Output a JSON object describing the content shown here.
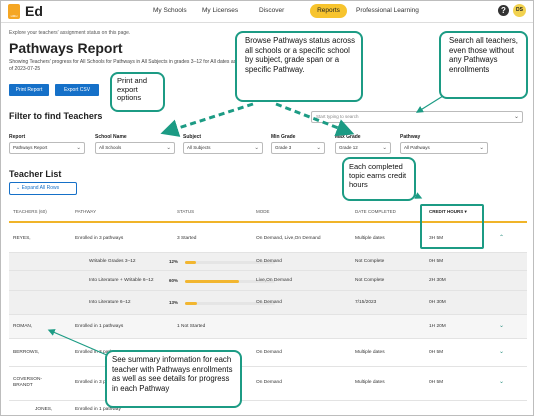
{
  "nav": {
    "logo_badge": "HMH",
    "logo": "Ed",
    "links": [
      "My Schools",
      "My Licenses",
      "Discover",
      "Professional Learning"
    ],
    "active": "Reports",
    "help": "?",
    "avatar": "DS"
  },
  "page": {
    "intro": "Explore your teachers' assignment status on this page.",
    "title": "Pathways Report",
    "subtitle": "Showing Teachers' progress for All Schools for Pathways in All Subjects in grades 3–12 for All dates as of 2023-07-25",
    "print_button": "Print Report",
    "csv_button": "Export CSV"
  },
  "filters": {
    "title": "Filter to find Teachers",
    "search_placeholder": "Start typing to search",
    "fields": [
      {
        "label": "Report",
        "value": "Pathways Report"
      },
      {
        "label": "School Name",
        "value": "All Schools"
      },
      {
        "label": "Subject",
        "value": "All Subjects"
      },
      {
        "label": "Min Grade",
        "value": "Grade 3"
      },
      {
        "label": "Max Grade",
        "value": "Grade 12"
      },
      {
        "label": "Pathway",
        "value": "All Pathways"
      }
    ]
  },
  "teacher_list": {
    "title": "Teacher List",
    "expand_button": "Expand All Rows",
    "columns": [
      "TEACHERS (60)",
      "PATHWAY",
      "STATUS",
      "MODE",
      "DATE COMPLETED",
      "CREDIT HOURS"
    ],
    "rows": [
      {
        "teacher": "REYES,",
        "pathway": "Enrolled in 3 pathways",
        "status": "3 Started",
        "mode": "On Demand, Live,On Demand",
        "date": "Multiple dates",
        "hours": "3H 5M",
        "chev": "^"
      },
      {
        "teacher": "",
        "pathway": "Writable Grades 3–12",
        "pct": "12%",
        "progress": 0.12,
        "mode": "On Demand",
        "date": "Not Complete",
        "hours": "0H 5M"
      },
      {
        "teacher": "",
        "pathway": "Into Literature + Writable 6–12",
        "pct": "60%",
        "progress": 0.6,
        "mode": "Live,On Demand",
        "date": "Not Complete",
        "hours": "2H 30M"
      },
      {
        "teacher": "",
        "pathway": "Into Literature 6–12",
        "pct": "13%",
        "progress": 0.13,
        "mode": "On Demand",
        "date": "7/15/2023",
        "hours": "0H 30M"
      },
      {
        "teacher": "ROMAN,",
        "pathway": "Enrolled in 1 pathways",
        "status": "1 Not Started",
        "mode": "",
        "date": "",
        "hours": "1H 20M",
        "chev": "v"
      },
      {
        "teacher": "BERROWS,",
        "pathway": "Enrolled in 3 pathways",
        "status": "",
        "mode": "On Demand",
        "date": "Multiple dates",
        "hours": "0H 5M",
        "chev": "v"
      },
      {
        "teacher": "COVERSON-BRANDT",
        "pathway": "Enrolled in 3 pathways",
        "status": "",
        "mode": "On Demand",
        "date": "Multiple dates",
        "hours": "0H 5M",
        "chev": "v"
      },
      {
        "teacher": "JONES,",
        "pathway": "Enrolled in 1 pathway",
        "status": "",
        "mode": "",
        "date": "",
        "hours": "",
        "chev": ""
      }
    ]
  },
  "callouts": {
    "print_export": "Print and export options",
    "browse": "Browse Pathways status across all schools or a specific school by subject, grade span or a specific Pathway.",
    "search": "Search all teachers, even those without any Pathways enrollments",
    "credit": "Each completed topic earns credit hours",
    "summary": "See summary information for each teacher with Pathways enrollments as well as see details for progress in each Pathway"
  },
  "colors": {
    "accent": "#1570c8",
    "highlight": "#f7c42e",
    "callout_border": "#1c9b84",
    "progress": "#f2b630"
  }
}
